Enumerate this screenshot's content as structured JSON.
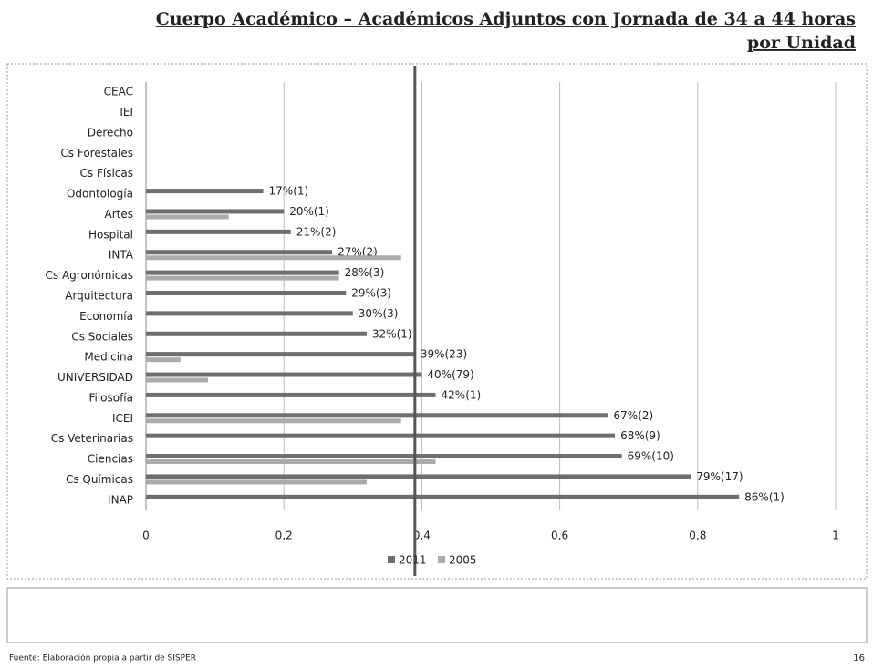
{
  "chart_data": {
    "type": "barh",
    "title": "Cuerpo Académico – Académicos Adjuntos con Jornada de 34 a 44 horas",
    "subtitle": "por Unidad",
    "categories": [
      "CEAC",
      "IEI",
      "Derecho",
      "Cs Forestales",
      "Cs Físicas",
      "Odontología",
      "Artes",
      "Hospital",
      "INTA",
      "Cs Agronómicas",
      "Arquitectura",
      "Economía",
      "Cs Sociales",
      "Medicina",
      "UNIVERSIDAD",
      "Filosofía",
      "ICEI",
      "Cs Veterinarias",
      "Ciencias",
      "Cs Químicas",
      "INAP"
    ],
    "series": [
      {
        "name": "2011",
        "color": "#6e6e6e",
        "values": [
          null,
          null,
          null,
          null,
          null,
          0.17,
          0.2,
          0.21,
          0.27,
          0.28,
          0.29,
          0.3,
          0.32,
          0.39,
          0.4,
          0.42,
          0.67,
          0.68,
          0.69,
          0.79,
          0.86
        ],
        "value_labels": [
          null,
          null,
          null,
          null,
          null,
          "17%(1)",
          "20%(1)",
          "21%(2)",
          "27%(2)",
          "28%(3)",
          "29%(3)",
          "30%(3)",
          "32%(1)",
          "39%(23)",
          "40%(79)",
          "42%(1)",
          "67%(2)",
          "68%(9)",
          "69%(10)",
          "79%(17)",
          "86%(1)"
        ]
      },
      {
        "name": "2005",
        "color": "#ababab",
        "values": [
          null,
          null,
          null,
          null,
          null,
          null,
          0.12,
          null,
          0.37,
          0.28,
          null,
          null,
          null,
          0.05,
          0.09,
          null,
          0.37,
          null,
          0.42,
          0.32,
          null
        ]
      }
    ],
    "reference_line": 0.39,
    "xlim": [
      0,
      1
    ],
    "xticks": [
      0,
      {
        "value": 0.2,
        "label": "0,2"
      },
      {
        "value": 0.4,
        "label": "0,4"
      },
      {
        "value": 0.6,
        "label": "0,6"
      },
      {
        "value": 0.8,
        "label": "0,8"
      },
      1
    ],
    "grid": true,
    "legend": "bottom"
  },
  "source": "Fuente: Elaboración propia a partir de SISPER",
  "page_number": 16
}
